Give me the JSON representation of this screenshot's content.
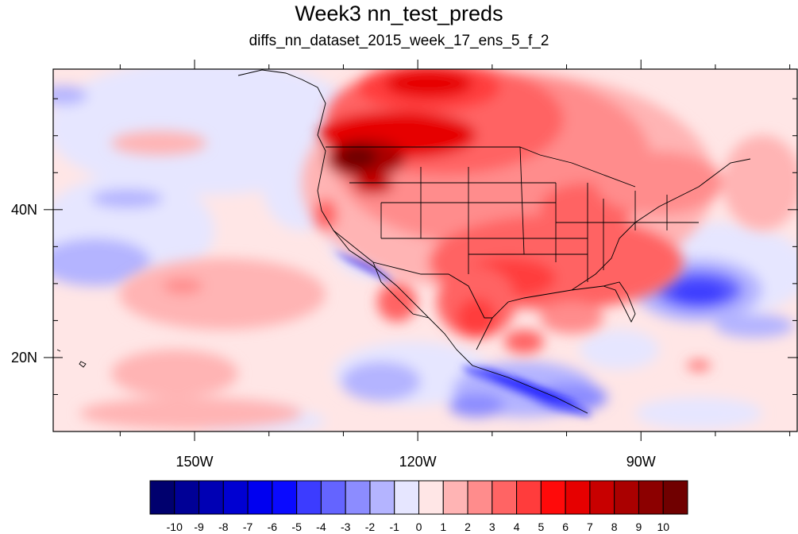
{
  "title": "Week3 nn_test_preds",
  "subtitle": "diffs_nn_dataset_2015_week_17_ens_5_f_2",
  "map": {
    "lon_range": [
      -169,
      -69
    ],
    "lat_range": [
      10,
      59
    ],
    "lon_ticks": [
      {
        "value": -150,
        "label": "150W"
      },
      {
        "value": -120,
        "label": "120W"
      },
      {
        "value": -90,
        "label": "90W"
      }
    ],
    "lat_ticks": [
      {
        "value": 40,
        "label": "40N"
      },
      {
        "value": 20,
        "label": "20N"
      }
    ],
    "lon_minor": [
      -160,
      -140,
      -130,
      -110,
      -100,
      -80,
      -70
    ],
    "lat_minor": [
      15,
      25,
      30,
      35,
      45,
      50,
      55
    ]
  },
  "colorbar": {
    "levels": [
      "-10",
      "-9",
      "-8",
      "-7",
      "-6",
      "-5",
      "-4",
      "-3",
      "-2",
      "-1",
      "0",
      "1",
      "2",
      "3",
      "4",
      "5",
      "6",
      "7",
      "8",
      "9",
      "10"
    ],
    "colors": [
      "#00006e",
      "#000096",
      "#0000b4",
      "#0000d2",
      "#0000f0",
      "#0a0aff",
      "#3c3cff",
      "#6464ff",
      "#8c8cff",
      "#b4b4ff",
      "#e6e6ff",
      "#ffe6e6",
      "#ffb4b4",
      "#ff8c8c",
      "#ff6464",
      "#ff3c3c",
      "#ff0a0a",
      "#e60000",
      "#c80000",
      "#aa0000",
      "#8c0000",
      "#700000"
    ]
  }
}
